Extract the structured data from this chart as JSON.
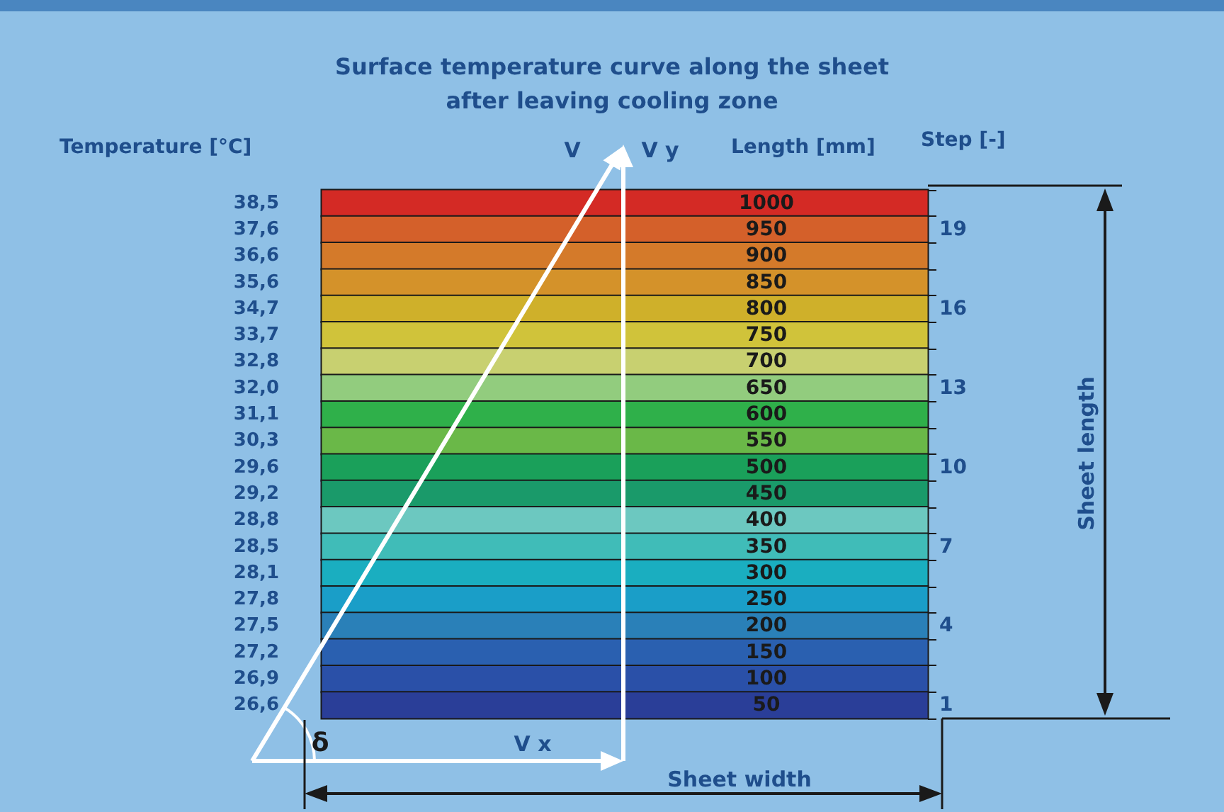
{
  "chart_data": {
    "type": "heatmap",
    "title": "Surface temperature curve along the sheet\nafter leaving cooling zone",
    "xlabel": "Length [mm]",
    "ylabel": "Temperature [°C]",
    "y2label": "Step [-]",
    "categories": [
      null
    ],
    "y_categories": [
      "38,5",
      "37,6",
      "36,6",
      "35,6",
      "34,7",
      "33,7",
      "32,8",
      "32,0",
      "31,1",
      "30,3",
      "29,6",
      "29,2",
      "28,8",
      "28,5",
      "28,1",
      "27,8",
      "27,5",
      "27,2",
      "26,9",
      "26,6"
    ],
    "y2_categories": [
      null,
      "19",
      null,
      null,
      "16",
      null,
      null,
      "13",
      null,
      null,
      "10",
      null,
      null,
      "7",
      null,
      null,
      "4",
      null,
      null,
      "1"
    ],
    "cells": [
      [
        1000
      ],
      [
        950
      ],
      [
        900
      ],
      [
        850
      ],
      [
        800
      ],
      [
        750
      ],
      [
        700
      ],
      [
        650
      ],
      [
        600
      ],
      [
        550
      ],
      [
        500
      ],
      [
        450
      ],
      [
        400
      ],
      [
        350
      ],
      [
        300
      ],
      [
        250
      ],
      [
        200
      ],
      [
        150
      ],
      [
        100
      ],
      [
        50
      ]
    ],
    "colors": [
      "#d42a25",
      "#d4602a",
      "#d47a2a",
      "#d4922a",
      "#cfb02a",
      "#d0c33a",
      "#c8d070",
      "#92cc7e",
      "#2fb04a",
      "#6ab848",
      "#1aa05a",
      "#1a9a6a",
      "#6cc8c0",
      "#40bcb8",
      "#1aaec0",
      "#1a9ec8",
      "#2a80b8",
      "#2a60b0",
      "#2a50a8",
      "#2a3e98"
    ],
    "data_labels": true,
    "annotations": [
      "V",
      "V y",
      "V x",
      "δ",
      "Sheet width",
      "Sheet length"
    ]
  }
}
